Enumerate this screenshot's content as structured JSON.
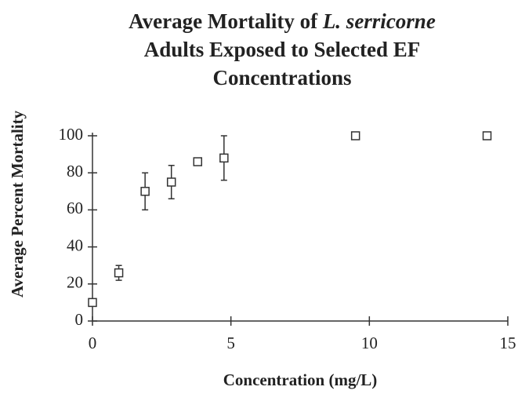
{
  "chart_data": {
    "type": "scatter",
    "title": [
      "Average Mortality of",
      "L. serricorne",
      "Adults Exposed to Selected EF",
      "Concentrations"
    ],
    "xlabel": "Concentration (mg/L)",
    "ylabel": "Average Percent Mortality",
    "series": [
      {
        "name": "Mortality",
        "color": "#333333",
        "x": [
          0,
          0.95,
          1.9,
          2.85,
          3.8,
          4.75,
          9.5,
          14.25
        ],
        "values": [
          10,
          26,
          70,
          75,
          86,
          88,
          100,
          100
        ],
        "errors": [
          0,
          4,
          10,
          9,
          2,
          12,
          0,
          0
        ]
      }
    ],
    "xlim": [
      0,
      15
    ],
    "xticks": [
      0,
      5,
      10,
      15
    ],
    "ylim": [
      0,
      100
    ],
    "yticks": [
      0,
      20,
      40,
      60,
      80,
      100
    ]
  }
}
